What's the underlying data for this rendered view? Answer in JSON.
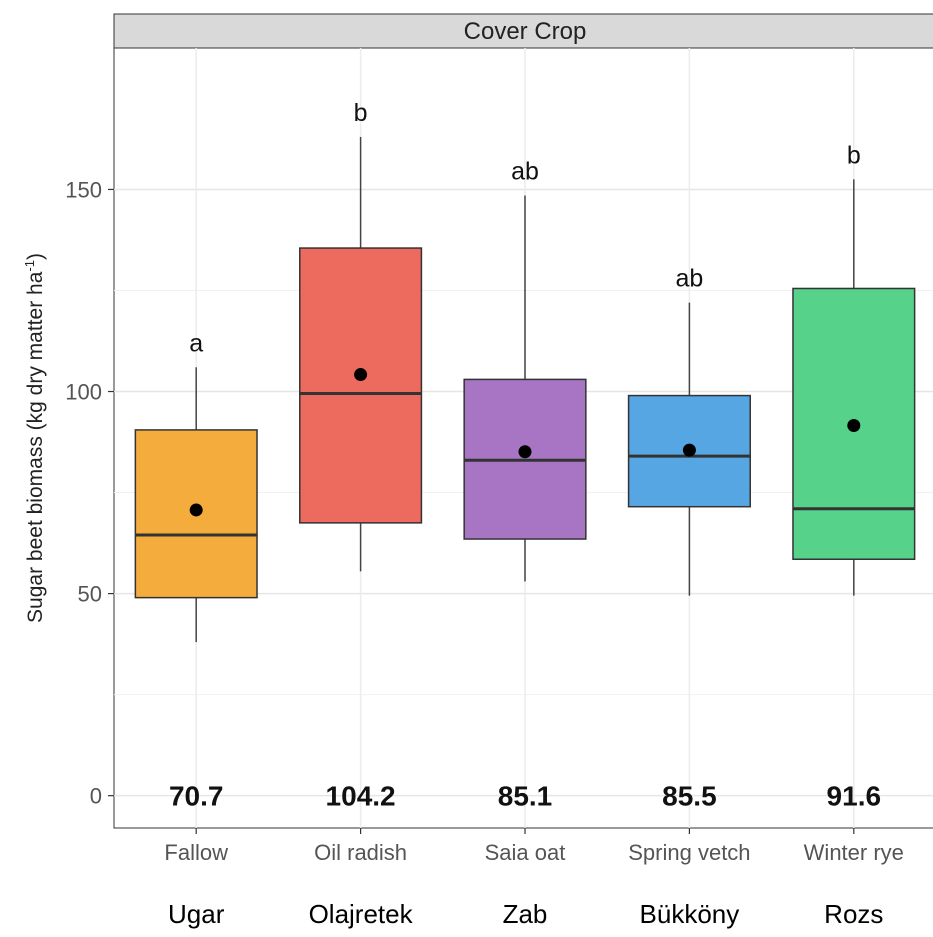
{
  "chart_data": {
    "type": "box",
    "facet_label": "Cover Crop",
    "ylabel": "Sugar beet biomass (kg dry matter ha",
    "ylabel_sup": "-1",
    "ylabel_end": ")",
    "ylim": [
      -8,
      185
    ],
    "yticks": [
      0,
      50,
      100,
      150
    ],
    "ytick_labels": [
      "0",
      "50",
      "100",
      "150"
    ],
    "categories": [
      "Fallow",
      "Oil radish",
      "Saia oat",
      "Spring vetch",
      "Winter rye"
    ],
    "translations": [
      "Ugar",
      "Olajretek",
      "Zab",
      "Bükköny",
      "Rozs"
    ],
    "boxes": [
      {
        "whisker_low": 38,
        "q1": 49,
        "median": 64.5,
        "q3": 90.5,
        "whisker_high": 106,
        "mean": 70.7,
        "color": "#f4ad3c",
        "sig": "a"
      },
      {
        "whisker_low": 55.5,
        "q1": 67.5,
        "median": 99.5,
        "q3": 135.5,
        "whisker_high": 163,
        "mean": 104.2,
        "color": "#ed6b5e",
        "sig": "b"
      },
      {
        "whisker_low": 53,
        "q1": 63.5,
        "median": 83,
        "q3": 103,
        "whisker_high": 148.5,
        "mean": 85.1,
        "color": "#a874c4",
        "sig": "ab"
      },
      {
        "whisker_low": 49.5,
        "q1": 71.5,
        "median": 84,
        "q3": 99,
        "whisker_high": 122,
        "mean": 85.5,
        "color": "#56a6e3",
        "sig": "ab"
      },
      {
        "whisker_low": 49.5,
        "q1": 58.5,
        "median": 71,
        "q3": 125.5,
        "whisker_high": 152.5,
        "mean": 91.6,
        "color": "#56d28a",
        "sig": "b"
      }
    ],
    "mean_labels": [
      "70.7",
      "104.2",
      "85.1",
      "85.5",
      "91.6"
    ],
    "grid": true
  }
}
